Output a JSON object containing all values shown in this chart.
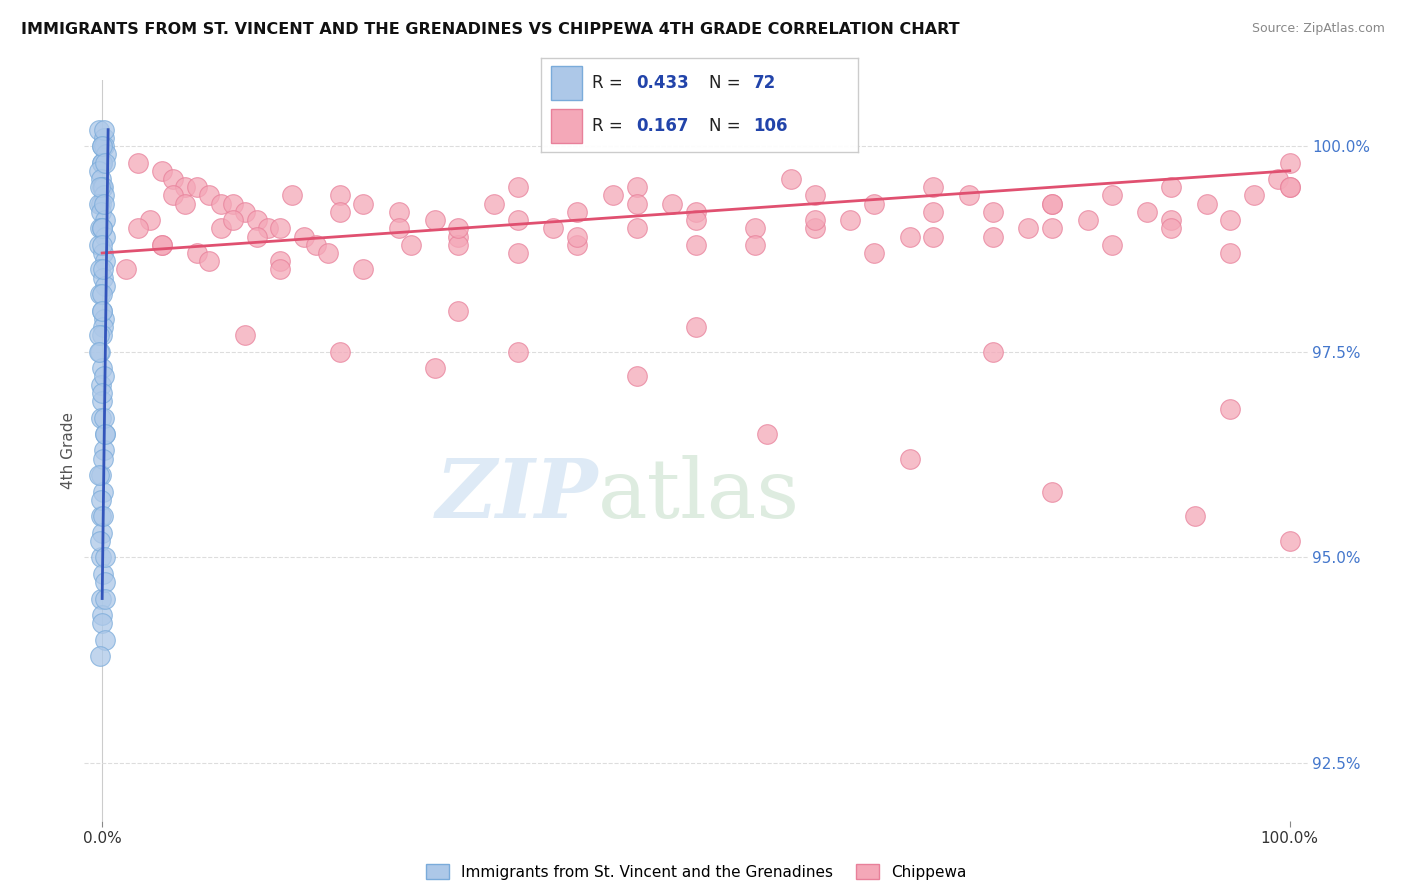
{
  "title": "IMMIGRANTS FROM ST. VINCENT AND THE GRENADINES VS CHIPPEWA 4TH GRADE CORRELATION CHART",
  "source": "Source: ZipAtlas.com",
  "ylabel": "4th Grade",
  "xlim": [
    -1.5,
    101.5
  ],
  "ylim": [
    91.8,
    100.8
  ],
  "yticks": [
    92.5,
    95.0,
    97.5,
    100.0
  ],
  "ytick_labels": [
    "92.5%",
    "95.0%",
    "97.5%",
    "100.0%"
  ],
  "xtick_positions": [
    0,
    100
  ],
  "xtick_labels": [
    "0.0%",
    "100.0%"
  ],
  "blue_R": 0.433,
  "blue_N": 72,
  "pink_R": 0.167,
  "pink_N": 106,
  "blue_color": "#adc8e8",
  "pink_color": "#f4a8b8",
  "blue_edge_color": "#7aabda",
  "pink_edge_color": "#e8809a",
  "blue_line_color": "#3355bb",
  "pink_line_color": "#e05070",
  "legend_text_color": "#2244aa",
  "title_color": "#111111",
  "ylabel_color": "#555555",
  "grid_color": "#dddddd",
  "right_tick_color": "#4477cc",
  "watermark_zip_color": "#c8ddf0",
  "watermark_atlas_color": "#c8e0cc",
  "blue_scatter_x": [
    0,
    0,
    0,
    0,
    0,
    0,
    0,
    0,
    0,
    0,
    0,
    0,
    0,
    0,
    0,
    0,
    0,
    0,
    0,
    0,
    0,
    0,
    0,
    0,
    0,
    0,
    0,
    0,
    0,
    0,
    0,
    0,
    0,
    0,
    0,
    0,
    0,
    0,
    0,
    0,
    0,
    0,
    0,
    0,
    0,
    0,
    0,
    0,
    0,
    0,
    0,
    0,
    0,
    0,
    0,
    0,
    0,
    0,
    0,
    0,
    0,
    0,
    0,
    0,
    0,
    0,
    0,
    0,
    0,
    0,
    0,
    0
  ],
  "blue_scatter_y": [
    100.2,
    100.1,
    100.0,
    100.0,
    99.9,
    99.8,
    99.8,
    99.7,
    99.6,
    99.5,
    99.5,
    99.4,
    99.3,
    99.3,
    99.2,
    99.1,
    99.0,
    99.0,
    98.9,
    98.8,
    98.7,
    98.6,
    98.5,
    98.4,
    98.3,
    98.2,
    98.0,
    97.9,
    97.8,
    97.7,
    97.5,
    97.3,
    97.1,
    96.9,
    96.7,
    96.5,
    96.3,
    96.0,
    95.8,
    95.5,
    95.3,
    95.0,
    94.8,
    94.5,
    94.3,
    100.2,
    100.0,
    99.8,
    99.5,
    99.3,
    99.0,
    98.8,
    98.5,
    98.2,
    98.0,
    97.7,
    97.5,
    97.2,
    97.0,
    96.7,
    96.5,
    96.2,
    96.0,
    95.7,
    95.5,
    95.2,
    95.0,
    94.7,
    94.5,
    94.2,
    94.0,
    93.8
  ],
  "pink_scatter_x": [
    3,
    5,
    6,
    7,
    8,
    9,
    10,
    11,
    12,
    13,
    14,
    15,
    17,
    18,
    20,
    22,
    25,
    28,
    30,
    33,
    35,
    38,
    40,
    43,
    45,
    48,
    50,
    55,
    58,
    60,
    63,
    65,
    68,
    70,
    73,
    75,
    78,
    80,
    83,
    85,
    88,
    90,
    93,
    95,
    97,
    99,
    100,
    2,
    4,
    6,
    8,
    10,
    15,
    20,
    25,
    30,
    35,
    40,
    45,
    50,
    55,
    60,
    65,
    70,
    75,
    80,
    85,
    90,
    95,
    100,
    3,
    5,
    7,
    9,
    11,
    13,
    16,
    19,
    22,
    26,
    30,
    35,
    40,
    45,
    50,
    60,
    70,
    80,
    90,
    100,
    12,
    20,
    28,
    35,
    45,
    56,
    68,
    80,
    92,
    100,
    5,
    15,
    30,
    50,
    75,
    95
  ],
  "pink_scatter_y": [
    99.8,
    99.7,
    99.6,
    99.5,
    99.5,
    99.4,
    99.3,
    99.3,
    99.2,
    99.1,
    99.0,
    99.0,
    98.9,
    98.8,
    99.4,
    99.3,
    99.2,
    99.1,
    98.9,
    99.3,
    99.5,
    99.0,
    98.8,
    99.4,
    99.5,
    99.3,
    99.2,
    99.0,
    99.6,
    99.4,
    99.1,
    99.3,
    98.9,
    99.5,
    99.4,
    99.2,
    99.0,
    99.3,
    99.1,
    99.4,
    99.2,
    99.5,
    99.3,
    99.1,
    99.4,
    99.6,
    99.8,
    98.5,
    99.1,
    99.4,
    98.7,
    99.0,
    98.6,
    99.2,
    99.0,
    98.8,
    99.1,
    98.9,
    99.3,
    99.1,
    98.8,
    99.0,
    98.7,
    99.2,
    98.9,
    99.0,
    98.8,
    99.1,
    98.7,
    99.5,
    99.0,
    98.8,
    99.3,
    98.6,
    99.1,
    98.9,
    99.4,
    98.7,
    98.5,
    98.8,
    99.0,
    98.7,
    99.2,
    99.0,
    98.8,
    99.1,
    98.9,
    99.3,
    99.0,
    99.5,
    97.7,
    97.5,
    97.3,
    97.5,
    97.2,
    96.5,
    96.2,
    95.8,
    95.5,
    95.2,
    98.8,
    98.5,
    98.0,
    97.8,
    97.5,
    96.8
  ],
  "blue_trend_x": [
    0,
    0.5
  ],
  "blue_trend_y_start": 94.5,
  "blue_trend_y_end": 100.2,
  "pink_trend_x": [
    0,
    100
  ],
  "pink_trend_y_start": 98.7,
  "pink_trend_y_end": 99.7
}
